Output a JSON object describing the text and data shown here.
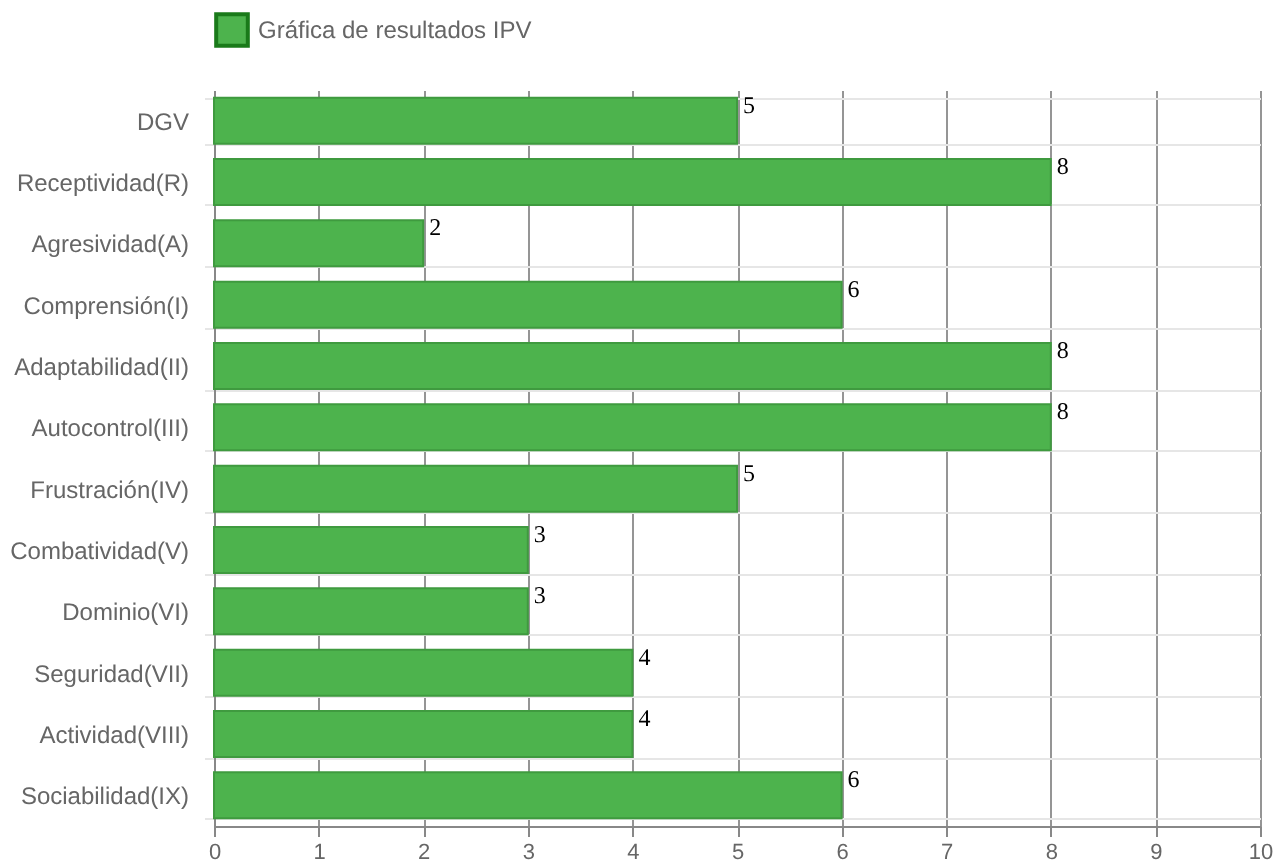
{
  "chart_data": {
    "type": "bar",
    "orientation": "horizontal",
    "categories": [
      "DGV",
      "Receptividad(R)",
      "Agresividad(A)",
      "Comprensión(I)",
      "Adaptabilidad(II)",
      "Autocontrol(III)",
      "Frustración(IV)",
      "Combatividad(V)",
      "Dominio(VI)",
      "Seguridad(VII)",
      "Actividad(VIII)",
      "Sociabilidad(IX)"
    ],
    "series": [
      {
        "name": "Gráfica de resultados IPV",
        "color": "#4db34d",
        "values": [
          5,
          8,
          2,
          6,
          8,
          8,
          5,
          3,
          3,
          4,
          4,
          6
        ]
      }
    ],
    "xlim": [
      0,
      10
    ],
    "xticks": [
      0,
      1,
      2,
      3,
      4,
      5,
      6,
      7,
      8,
      9,
      10
    ],
    "grid": true,
    "legend": "top",
    "data_labels": true
  }
}
